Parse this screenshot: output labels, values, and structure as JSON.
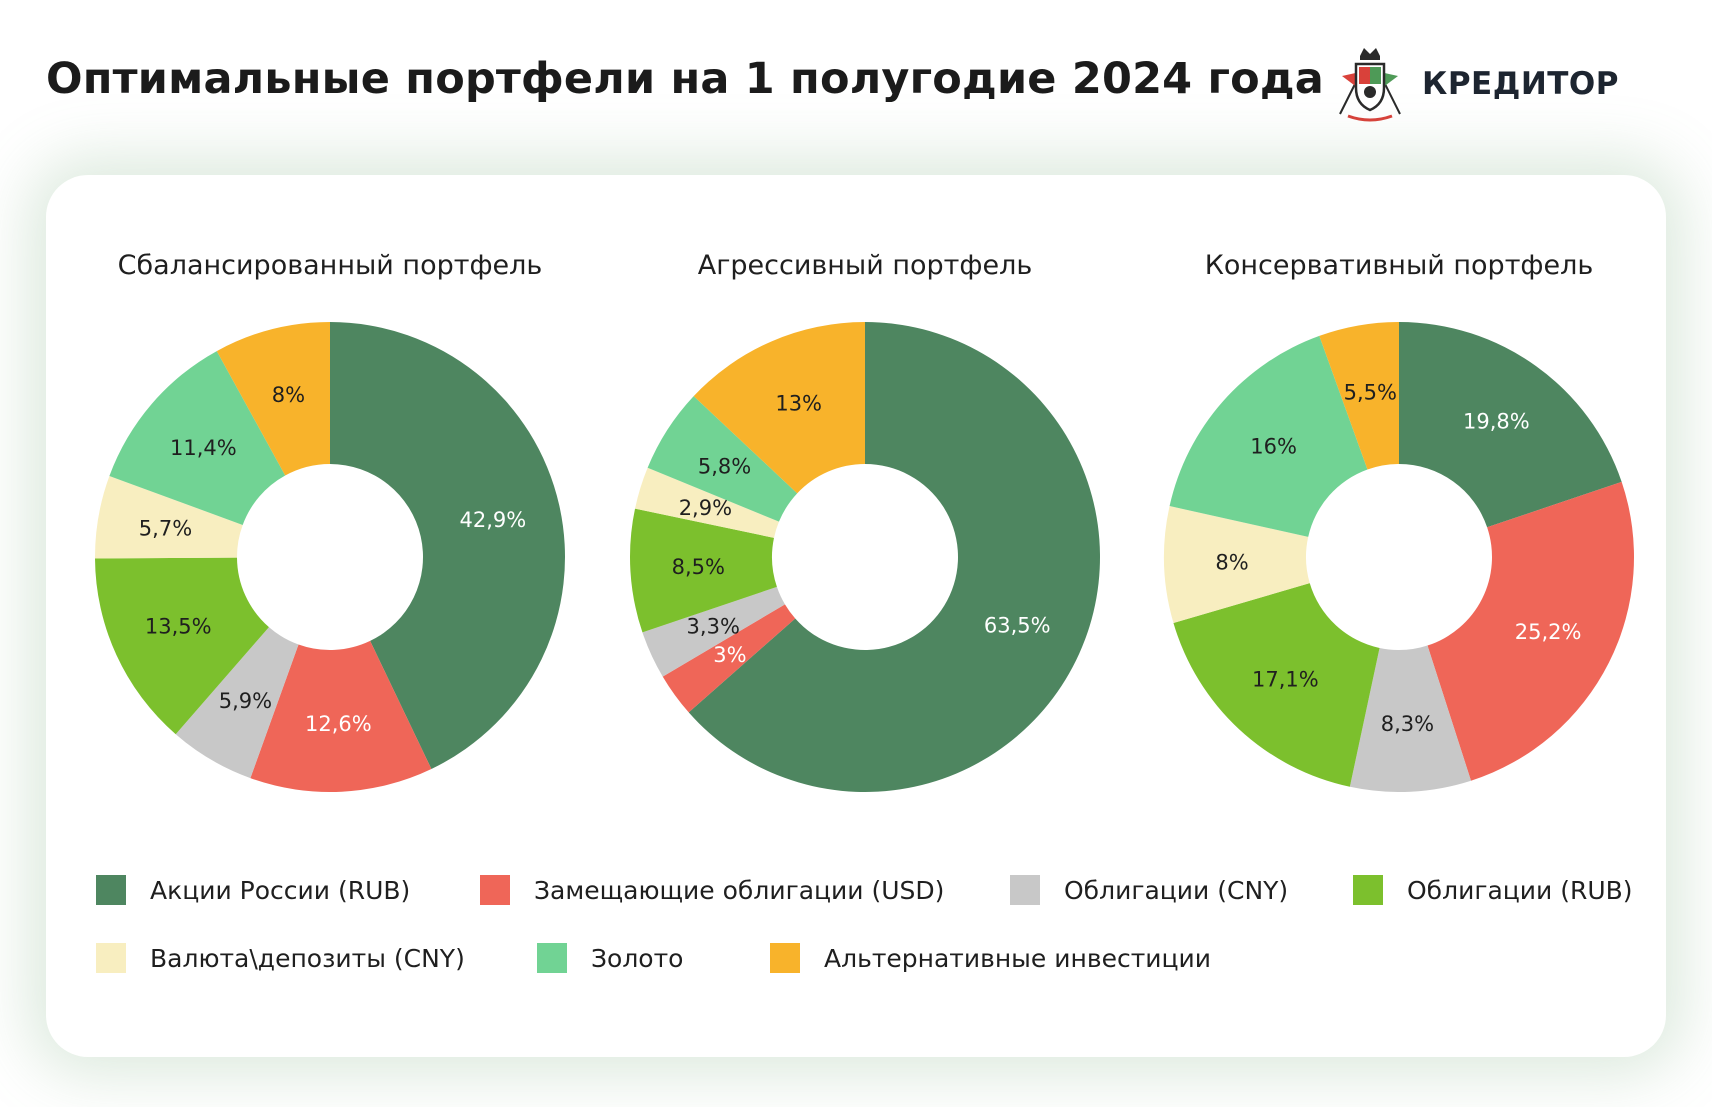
{
  "header": {
    "title": "Оптимальные портфели на 1 полугодие 2024 года",
    "brand": "КРЕДИТОР"
  },
  "colors": {
    "Акции России (RUB)": "#4e8660",
    "Замещающие облигации (USD)": "#ef6658",
    "Облигации (CNY)": "#c8c8c8",
    "Облигации (RUB)": "#7cc02d",
    "Валюта\\депозиты (CNY)": "#f8eec0",
    "Золото": "#71d394",
    "Альтернативные инвестиции": "#f8b32b"
  },
  "legend": [
    {
      "label": "Акции России (RUB)"
    },
    {
      "label": "Замещающие облигации (USD)"
    },
    {
      "label": "Облигации (CNY)"
    },
    {
      "label": "Облигации (RUB)"
    },
    {
      "label": "Валюта\\депозиты (CNY)"
    },
    {
      "label": "Золото"
    },
    {
      "label": "Альтернативные инвестиции"
    }
  ],
  "chart_data": [
    {
      "type": "pie",
      "title": "Сбалансированный портфель",
      "slices": [
        {
          "category": "Акции России (RUB)",
          "value": 42.9,
          "label": "42,9%"
        },
        {
          "category": "Замещающие облигации (USD)",
          "value": 12.6,
          "label": "12,6%"
        },
        {
          "category": "Облигации (CNY)",
          "value": 5.9,
          "label": "5,9%"
        },
        {
          "category": "Облигации (RUB)",
          "value": 13.5,
          "label": "13,5%"
        },
        {
          "category": "Валюта\\депозиты (CNY)",
          "value": 5.7,
          "label": "5,7%"
        },
        {
          "category": "Золото",
          "value": 11.4,
          "label": "11,4%"
        },
        {
          "category": "Альтернативные инвестиции",
          "value": 8,
          "label": "8%"
        }
      ]
    },
    {
      "type": "pie",
      "title": "Агрессивный портфель",
      "slices": [
        {
          "category": "Акции России (RUB)",
          "value": 63.5,
          "label": "63,5%"
        },
        {
          "category": "Замещающие облигации (USD)",
          "value": 3,
          "label": "3%"
        },
        {
          "category": "Облигации (CNY)",
          "value": 3.3,
          "label": "3,3%"
        },
        {
          "category": "Облигации (RUB)",
          "value": 8.5,
          "label": "8,5%"
        },
        {
          "category": "Валюта\\депозиты (CNY)",
          "value": 2.9,
          "label": "2,9%"
        },
        {
          "category": "Золото",
          "value": 5.8,
          "label": "5,8%"
        },
        {
          "category": "Альтернативные инвестиции",
          "value": 13,
          "label": "13%"
        }
      ]
    },
    {
      "type": "pie",
      "title": "Консервативный портфель",
      "slices": [
        {
          "category": "Акции России (RUB)",
          "value": 19.8,
          "label": "19,8%"
        },
        {
          "category": "Замещающие облигации (USD)",
          "value": 25.2,
          "label": "25,2%"
        },
        {
          "category": "Облигации (CNY)",
          "value": 8.3,
          "label": "8,3%"
        },
        {
          "category": "Облигации (RUB)",
          "value": 17.1,
          "label": "17,1%"
        },
        {
          "category": "Валюта\\депозиты (CNY)",
          "value": 8,
          "label": "8%"
        },
        {
          "category": "Золото",
          "value": 16,
          "label": "16%"
        },
        {
          "category": "Альтернативные инвестиции",
          "value": 5.5,
          "label": "5,5%"
        }
      ]
    }
  ]
}
